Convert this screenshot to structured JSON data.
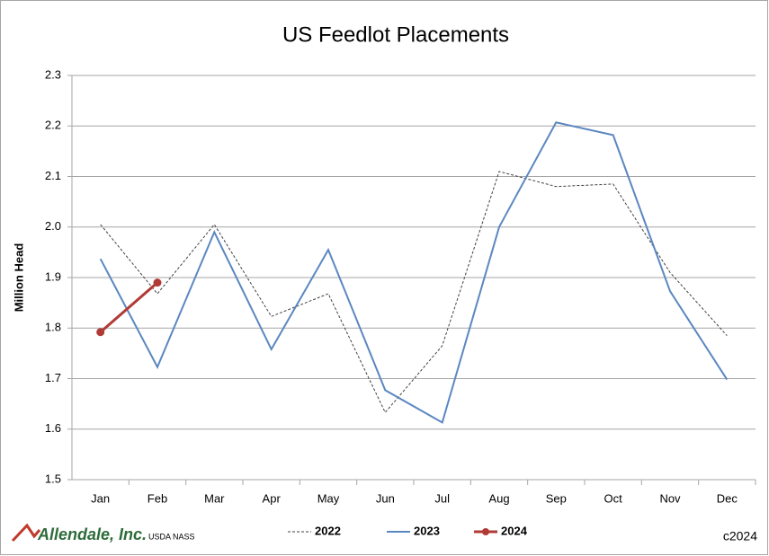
{
  "chart_data": {
    "type": "line",
    "title": "US Feedlot Placements",
    "y_label": "Million Head",
    "categories": [
      "Jan",
      "Feb",
      "Mar",
      "Apr",
      "May",
      "Jun",
      "Jul",
      "Aug",
      "Sep",
      "Oct",
      "Nov",
      "Dec"
    ],
    "series": [
      {
        "name": "2022",
        "color": "#404040",
        "dash": true,
        "values": [
          2.005,
          1.868,
          2.005,
          1.823,
          1.868,
          1.633,
          1.765,
          2.11,
          2.08,
          2.085,
          1.91,
          1.785
        ]
      },
      {
        "name": "2023",
        "color": "#5b87c0",
        "values": [
          1.937,
          1.723,
          1.99,
          1.758,
          1.955,
          1.677,
          1.613,
          2.0,
          2.207,
          2.182,
          1.873,
          1.698
        ]
      },
      {
        "name": "2024",
        "color": "#b03a35",
        "markers": true,
        "values": [
          1.792,
          1.89,
          null,
          null,
          null,
          null,
          null,
          null,
          null,
          null,
          null,
          null
        ]
      }
    ],
    "ylim": [
      1.5,
      2.3
    ],
    "yticks": [
      1.5,
      1.6,
      1.7,
      1.8,
      1.9,
      {
        "value": 2,
        "label": "2.0"
      },
      2.1,
      2.2,
      2.3
    ],
    "grid": true,
    "legend": "bottom",
    "footer": {
      "logo": "Allendale, Inc.",
      "source": "USDA NASS",
      "copyright": "c2024"
    }
  }
}
